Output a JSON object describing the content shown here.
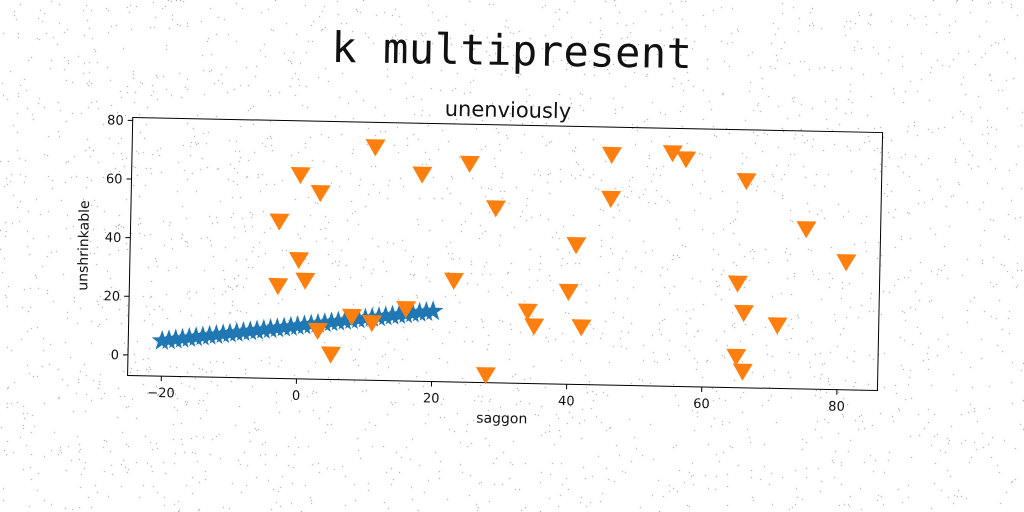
{
  "page_title": "k multipresent",
  "colors": {
    "star_series": "#1f77b4",
    "triangle_series": "#ff7f0e"
  },
  "chart_data": {
    "type": "scatter",
    "title": "unenviously",
    "xlabel": "saggon",
    "ylabel": "unshrinkable",
    "xlim": [
      -25,
      86
    ],
    "ylim": [
      -7,
      81
    ],
    "x_ticks": [
      -20,
      0,
      20,
      40,
      60,
      80
    ],
    "x_tick_labels": [
      "−20",
      "0",
      "20",
      "40",
      "60",
      "80"
    ],
    "y_ticks": [
      0,
      20,
      40,
      60,
      80
    ],
    "y_tick_labels": [
      "0",
      "20",
      "40",
      "60",
      "80"
    ],
    "grid": false,
    "legend": "none",
    "series": [
      {
        "marker": "star",
        "color": "#1f77b4",
        "points": [
          [
            -20,
            5
          ],
          [
            -19,
            5.3
          ],
          [
            -18,
            5.6
          ],
          [
            -17,
            5.9
          ],
          [
            -16,
            6.2
          ],
          [
            -15,
            6.5
          ],
          [
            -14,
            6.8
          ],
          [
            -13,
            7.1
          ],
          [
            -12,
            7.4
          ],
          [
            -11,
            7.7
          ],
          [
            -10,
            8
          ],
          [
            -9,
            8.3
          ],
          [
            -8,
            8.6
          ],
          [
            -7,
            8.9
          ],
          [
            -6,
            9.2
          ],
          [
            -5,
            9.5
          ],
          [
            -4,
            9.8
          ],
          [
            -3,
            10.1
          ],
          [
            -2,
            10.4
          ],
          [
            -1,
            10.7
          ],
          [
            0,
            11
          ],
          [
            1,
            11.3
          ],
          [
            2,
            11.6
          ],
          [
            3,
            11.9
          ],
          [
            4,
            12.2
          ],
          [
            5,
            12.5
          ],
          [
            6,
            12.8
          ],
          [
            7,
            13.1
          ],
          [
            8,
            13.4
          ],
          [
            9,
            13.7
          ],
          [
            10,
            14
          ],
          [
            11,
            14.3
          ],
          [
            12,
            14.6
          ],
          [
            13,
            14.9
          ],
          [
            14,
            15.2
          ],
          [
            15,
            15.5
          ],
          [
            16,
            15.8
          ],
          [
            17,
            16.1
          ],
          [
            18,
            16.4
          ],
          [
            19,
            16.7
          ],
          [
            20,
            17
          ]
        ]
      },
      {
        "marker": "triangle_down",
        "color": "#ff7f0e",
        "points": [
          [
            -3,
            47
          ],
          [
            -3,
            25
          ],
          [
            0,
            34
          ],
          [
            0,
            63
          ],
          [
            1,
            27
          ],
          [
            3,
            57
          ],
          [
            3,
            10
          ],
          [
            5,
            2
          ],
          [
            8,
            15
          ],
          [
            11,
            13
          ],
          [
            11,
            73
          ],
          [
            16,
            18
          ],
          [
            18,
            64
          ],
          [
            23,
            28
          ],
          [
            25,
            68
          ],
          [
            28,
            -4
          ],
          [
            29,
            53
          ],
          [
            34,
            18
          ],
          [
            35,
            13
          ],
          [
            40,
            25
          ],
          [
            41,
            41
          ],
          [
            42,
            13
          ],
          [
            46,
            57
          ],
          [
            46,
            72
          ],
          [
            55,
            73
          ],
          [
            57,
            71
          ],
          [
            65,
            29
          ],
          [
            65,
            4
          ],
          [
            66,
            -1
          ],
          [
            66,
            64
          ],
          [
            66,
            19
          ],
          [
            71,
            15
          ],
          [
            75,
            48
          ],
          [
            81,
            37
          ]
        ]
      }
    ]
  }
}
